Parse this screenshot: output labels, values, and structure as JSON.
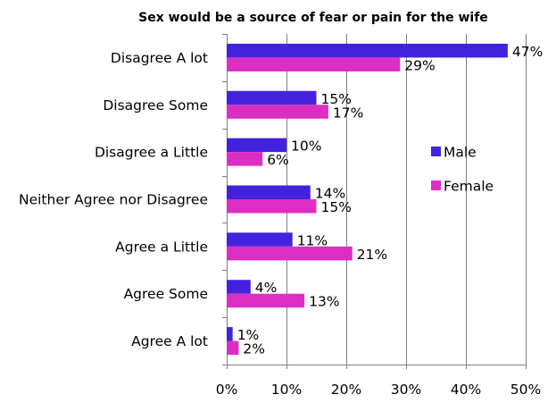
{
  "chart_data": {
    "type": "bar",
    "orientation": "horizontal",
    "title": "Sex would be a source of fear or pain for the wife",
    "categories": [
      "Disagree A lot",
      "Disagree Some",
      "Disagree a Little",
      "Neither Agree nor Disagree",
      "Agree a Little",
      "Agree Some",
      "Agree A lot"
    ],
    "series": [
      {
        "name": "Male",
        "color": "#4422dd",
        "values": [
          47,
          15,
          10,
          14,
          11,
          4,
          1
        ],
        "labels": [
          "47%",
          "15%",
          "10%",
          "14%",
          "11%",
          "4%",
          "1%"
        ]
      },
      {
        "name": "Female",
        "color": "#dd2ec4",
        "values": [
          29,
          17,
          6,
          15,
          21,
          13,
          2
        ],
        "labels": [
          "29%",
          "17%",
          "6%",
          "15%",
          "21%",
          "13%",
          "2%"
        ]
      }
    ],
    "xlim": [
      0,
      50
    ],
    "xticks": [
      0,
      10,
      20,
      30,
      40,
      50
    ],
    "xtick_labels": [
      "0%",
      "10%",
      "20%",
      "30%",
      "40%",
      "50%"
    ],
    "grid": "vertical",
    "legend": "right"
  }
}
